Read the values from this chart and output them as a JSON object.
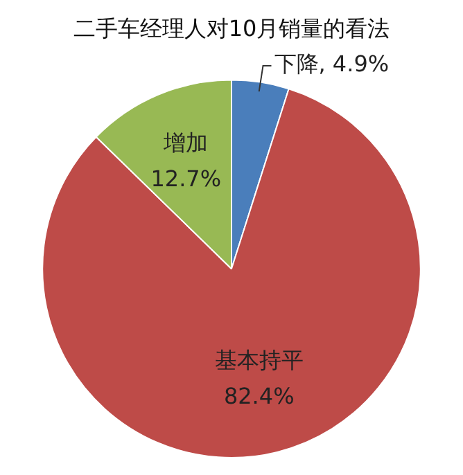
{
  "chart_data": {
    "type": "pie",
    "title": "二手车经理人对10月销量的看法",
    "categories": [
      "下降",
      "基本持平",
      "增加"
    ],
    "values": [
      4.9,
      82.4,
      12.7
    ],
    "colors": [
      "#4a7ebb",
      "#be4b48",
      "#98b954"
    ],
    "value_labels": [
      "4.9%",
      "82.4%",
      "12.7%"
    ],
    "legend": false
  }
}
